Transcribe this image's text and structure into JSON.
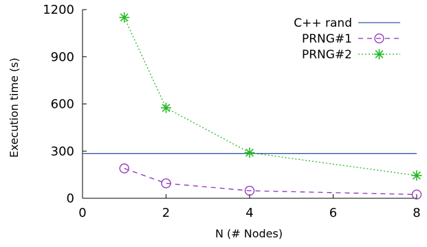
{
  "chart_data": {
    "type": "line",
    "xlabel": "N (# Nodes)",
    "ylabel": "Execution time (s)",
    "xlim": [
      0,
      8
    ],
    "ylim": [
      0,
      1200
    ],
    "xticks": [
      0,
      2,
      4,
      6,
      8
    ],
    "yticks": [
      0,
      300,
      600,
      900,
      1200
    ],
    "xtick_labels": [
      "0",
      "2",
      "4",
      "6",
      "8"
    ],
    "ytick_labels": [
      "0",
      "300",
      "600",
      "900",
      "1200"
    ],
    "grid": false,
    "legend_position": "top-right",
    "series": [
      {
        "name": "C++ rand",
        "style": "solid",
        "marker": "none",
        "color": "#3355aa",
        "x": [
          0,
          8
        ],
        "y": [
          285,
          285
        ]
      },
      {
        "name": "PRNG#1",
        "style": "dashed",
        "marker": "circle",
        "color": "#8c2eb8",
        "x": [
          1,
          2,
          4,
          8
        ],
        "y": [
          190,
          95,
          48,
          24
        ]
      },
      {
        "name": "PRNG#2",
        "style": "dotted",
        "marker": "asterisk",
        "color": "#22b822",
        "x": [
          1,
          2,
          4,
          8
        ],
        "y": [
          1150,
          575,
          290,
          145
        ]
      }
    ]
  }
}
